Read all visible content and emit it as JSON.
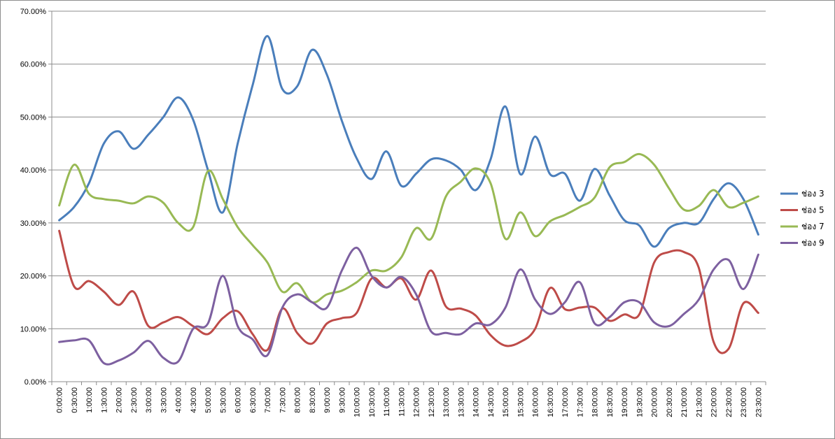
{
  "chart_data": {
    "type": "line",
    "title": "",
    "xlabel": "",
    "ylabel": "",
    "ylim": [
      0,
      0.7
    ],
    "y_ticks": [
      "0.00%",
      "10.00%",
      "20.00%",
      "30.00%",
      "40.00%",
      "50.00%",
      "60.00%",
      "70.00%"
    ],
    "grid": "horizontal",
    "legend_position": "right",
    "smooth": true,
    "x": [
      "0:00:00",
      "0:30:00",
      "1:00:00",
      "1:30:00",
      "2:00:00",
      "2:30:00",
      "3:00:00",
      "3:30:00",
      "4:00:00",
      "4:30:00",
      "5:00:00",
      "5:30:00",
      "6:00:00",
      "6:30:00",
      "7:00:00",
      "7:30:00",
      "8:00:00",
      "8:30:00",
      "9:00:00",
      "9:30:00",
      "10:00:00",
      "10:30:00",
      "11:00:00",
      "11:30:00",
      "12:00:00",
      "12:30:00",
      "13:00:00",
      "13:30:00",
      "14:00:00",
      "14:30:00",
      "15:00:00",
      "15:30:00",
      "16:00:00",
      "16:30:00",
      "17:00:00",
      "17:30:00",
      "18:00:00",
      "18:30:00",
      "19:00:00",
      "19:30:00",
      "20:00:00",
      "20:30:00",
      "21:00:00",
      "21:30:00",
      "22:00:00",
      "22:30:00",
      "23:00:00",
      "23:30:00"
    ],
    "series": [
      {
        "name": "ช่อง 3",
        "color": "#4a7ebb",
        "values": [
          0.305,
          0.33,
          0.375,
          0.45,
          0.473,
          0.44,
          0.467,
          0.5,
          0.537,
          0.495,
          0.4,
          0.32,
          0.45,
          0.56,
          0.653,
          0.553,
          0.558,
          0.627,
          0.58,
          0.493,
          0.422,
          0.383,
          0.435,
          0.37,
          0.393,
          0.42,
          0.418,
          0.4,
          0.362,
          0.42,
          0.52,
          0.392,
          0.463,
          0.392,
          0.393,
          0.342,
          0.402,
          0.352,
          0.305,
          0.295,
          0.255,
          0.29,
          0.3,
          0.3,
          0.345,
          0.375,
          0.345,
          0.278
        ]
      },
      {
        "name": "ช่อง 5",
        "color": "#be4b48",
        "values": [
          0.285,
          0.18,
          0.19,
          0.17,
          0.145,
          0.17,
          0.105,
          0.112,
          0.122,
          0.105,
          0.09,
          0.12,
          0.133,
          0.09,
          0.06,
          0.138,
          0.092,
          0.072,
          0.11,
          0.12,
          0.13,
          0.195,
          0.178,
          0.195,
          0.155,
          0.21,
          0.142,
          0.138,
          0.125,
          0.088,
          0.068,
          0.075,
          0.1,
          0.177,
          0.137,
          0.14,
          0.14,
          0.115,
          0.127,
          0.127,
          0.225,
          0.245,
          0.245,
          0.215,
          0.075,
          0.062,
          0.148,
          0.13
        ]
      },
      {
        "name": "ช่อง 7",
        "color": "#98b954",
        "values": [
          0.333,
          0.41,
          0.355,
          0.345,
          0.342,
          0.337,
          0.35,
          0.338,
          0.3,
          0.292,
          0.398,
          0.345,
          0.292,
          0.258,
          0.225,
          0.17,
          0.186,
          0.15,
          0.165,
          0.172,
          0.188,
          0.21,
          0.21,
          0.235,
          0.29,
          0.27,
          0.35,
          0.378,
          0.403,
          0.375,
          0.27,
          0.32,
          0.275,
          0.303,
          0.315,
          0.33,
          0.348,
          0.405,
          0.415,
          0.43,
          0.41,
          0.365,
          0.325,
          0.332,
          0.362,
          0.33,
          0.338,
          0.35
        ]
      },
      {
        "name": "ช่อง 9",
        "color": "#7d60a0",
        "values": [
          0.075,
          0.078,
          0.078,
          0.035,
          0.04,
          0.055,
          0.077,
          0.045,
          0.038,
          0.1,
          0.11,
          0.2,
          0.105,
          0.08,
          0.05,
          0.14,
          0.165,
          0.15,
          0.14,
          0.21,
          0.253,
          0.2,
          0.178,
          0.198,
          0.165,
          0.095,
          0.092,
          0.09,
          0.11,
          0.108,
          0.14,
          0.212,
          0.155,
          0.128,
          0.15,
          0.188,
          0.11,
          0.122,
          0.15,
          0.15,
          0.112,
          0.105,
          0.128,
          0.155,
          0.212,
          0.23,
          0.175,
          0.24
        ]
      }
    ]
  }
}
